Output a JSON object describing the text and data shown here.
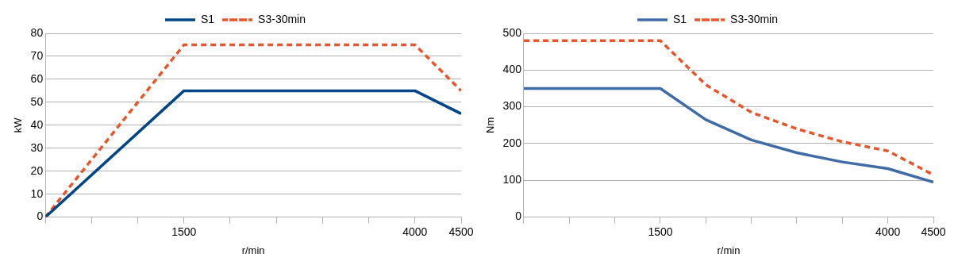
{
  "chart_data": [
    {
      "type": "line",
      "xlabel": "r/min",
      "ylabel": "kW",
      "x": [
        0,
        1500,
        4000,
        4500
      ],
      "series": [
        {
          "name": "S1",
          "color": "#004586",
          "values": [
            0,
            55,
            55,
            45
          ]
        },
        {
          "name": "S3-30min",
          "color": "#e8552a",
          "values": [
            0,
            75,
            75,
            55
          ],
          "line_style": "dashed"
        }
      ],
      "xlim": [
        0,
        4500
      ],
      "xticks": [
        {
          "value": 0,
          "label": null
        },
        {
          "value": 500,
          "label": null
        },
        {
          "value": 1000,
          "label": null
        },
        1500,
        {
          "value": 2000,
          "label": null
        },
        {
          "value": 2500,
          "label": null
        },
        {
          "value": 3000,
          "label": null
        },
        {
          "value": 3500,
          "label": null
        },
        4000,
        4500
      ],
      "ylim": [
        0,
        80
      ],
      "yticks": [
        0,
        10,
        20,
        30,
        40,
        50,
        60,
        70,
        80
      ],
      "grid": "y",
      "legend": "top"
    },
    {
      "type": "line",
      "xlabel": "r/min",
      "ylabel": "Nm",
      "x": [
        0,
        1500,
        2000,
        2500,
        3000,
        3500,
        4000,
        4500
      ],
      "series": [
        {
          "name": "S1",
          "color": "#3f6ba6",
          "values": [
            350,
            350,
            265,
            210,
            175,
            150,
            132,
            95
          ]
        },
        {
          "name": "S3-30min",
          "color": "#e8552a",
          "values": [
            480,
            480,
            360,
            285,
            240,
            205,
            180,
            115
          ],
          "line_style": "dashed"
        }
      ],
      "xlim": [
        0,
        4500
      ],
      "xticks": [
        {
          "value": 0,
          "label": null
        },
        {
          "value": 500,
          "label": null
        },
        {
          "value": 1000,
          "label": null
        },
        1500,
        {
          "value": 2000,
          "label": null
        },
        {
          "value": 2500,
          "label": null
        },
        {
          "value": 3000,
          "label": null
        },
        {
          "value": 3500,
          "label": null
        },
        4000,
        4500
      ],
      "ylim": [
        0,
        500
      ],
      "yticks": [
        0,
        100,
        200,
        300,
        400,
        500
      ],
      "grid": "y",
      "legend": "top"
    }
  ]
}
